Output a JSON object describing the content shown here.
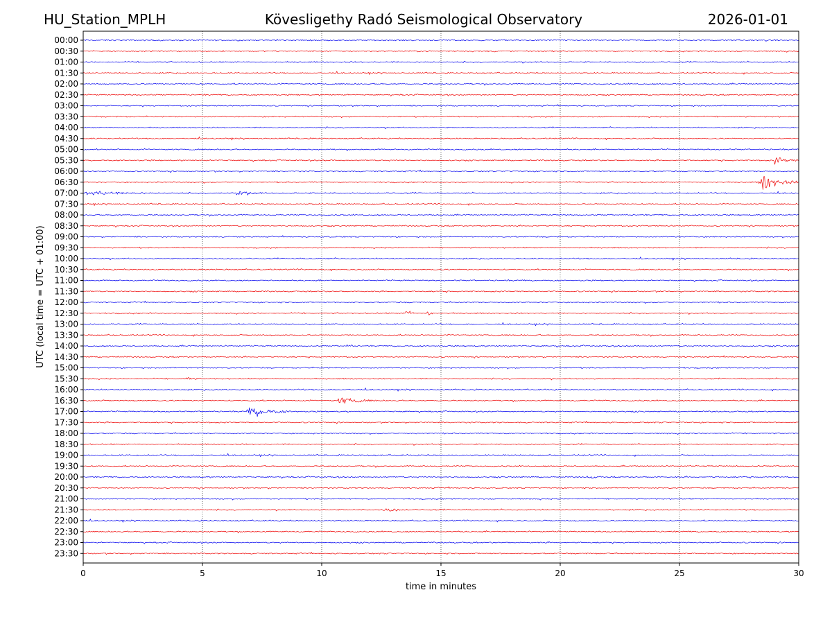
{
  "header": {
    "station": "HU_Station_MPLH",
    "observatory": "Kövesligethy Radó Seismological Observatory",
    "date": "2026-01-01"
  },
  "colors": {
    "even_trace": "#0000ee",
    "odd_trace": "#ee0000",
    "axis": "#000000",
    "grid": "#000000"
  },
  "chart_data": {
    "type": "line",
    "title": "Kövesligethy Radó Seismological Observatory",
    "xlabel": "time in minutes",
    "ylabel": "UTC (local time = UTC + 01:00)",
    "xlim": [
      0,
      30
    ],
    "xticks": [
      0,
      5,
      10,
      15,
      20,
      25,
      30
    ],
    "grid": "vertical dotted at x ticks",
    "row_labels": [
      "00:00",
      "00:30",
      "01:00",
      "01:30",
      "02:00",
      "02:30",
      "03:00",
      "03:30",
      "04:00",
      "04:30",
      "05:00",
      "05:30",
      "06:00",
      "06:30",
      "07:00",
      "07:30",
      "08:00",
      "08:30",
      "09:00",
      "09:30",
      "10:00",
      "10:30",
      "11:00",
      "11:30",
      "12:00",
      "12:30",
      "13:00",
      "13:30",
      "14:00",
      "14:30",
      "15:00",
      "15:30",
      "16:00",
      "16:30",
      "17:00",
      "17:30",
      "18:00",
      "18:30",
      "19:00",
      "19:30",
      "20:00",
      "20:30",
      "21:00",
      "21:30",
      "22:00",
      "22:30",
      "23:00",
      "23:30"
    ],
    "noise_level": 0.18,
    "events": [
      {
        "row": "05:30",
        "start_min": 28.9,
        "duration_min": 1.1,
        "amplitude": 1.2
      },
      {
        "row": "06:00",
        "start_min": 0.0,
        "duration_min": 0.2,
        "amplitude": 0.5
      },
      {
        "row": "06:30",
        "start_min": 28.3,
        "duration_min": 1.7,
        "amplitude": 2.5
      },
      {
        "row": "07:00",
        "start_min": 0.0,
        "duration_min": 3.0,
        "amplitude": 0.7
      },
      {
        "row": "07:00",
        "start_min": 6.3,
        "duration_min": 1.3,
        "amplitude": 0.8
      },
      {
        "row": "12:30",
        "start_min": 13.5,
        "duration_min": 0.4,
        "amplitude": 2.0
      },
      {
        "row": "12:30",
        "start_min": 14.4,
        "duration_min": 0.4,
        "amplitude": 1.1
      },
      {
        "row": "14:00",
        "start_min": 11.0,
        "duration_min": 0.6,
        "amplitude": 0.4
      },
      {
        "row": "15:30",
        "start_min": 4.3,
        "duration_min": 0.6,
        "amplitude": 0.4
      },
      {
        "row": "16:30",
        "start_min": 10.6,
        "duration_min": 1.8,
        "amplitude": 1.1
      },
      {
        "row": "17:00",
        "start_min": 6.8,
        "duration_min": 2.2,
        "amplitude": 1.4
      },
      {
        "row": "20:00",
        "start_min": 21.1,
        "duration_min": 0.8,
        "amplitude": 0.4
      },
      {
        "row": "21:30",
        "start_min": 12.5,
        "duration_min": 1.5,
        "amplitude": 0.4
      }
    ]
  }
}
